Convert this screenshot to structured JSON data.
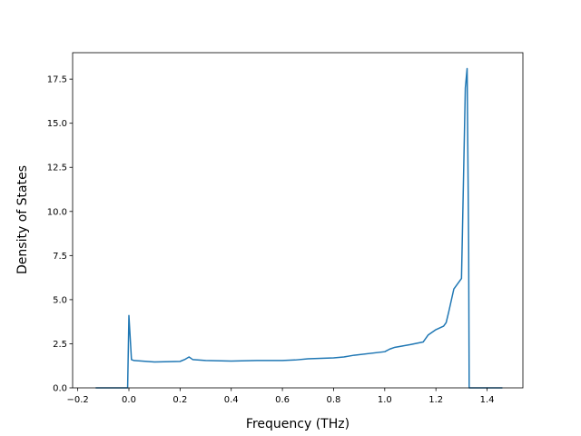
{
  "chart_data": {
    "type": "line",
    "title": "",
    "xlabel": "Frequency (THz)",
    "ylabel": "Density of States",
    "xlim": [
      -0.22,
      1.54
    ],
    "ylim": [
      0.0,
      19.0
    ],
    "xticks": [
      -0.2,
      0.0,
      0.2,
      0.4,
      0.6,
      0.8,
      1.0,
      1.2,
      1.4
    ],
    "xtick_labels": [
      "−0.2",
      "0.0",
      "0.2",
      "0.4",
      "0.6",
      "0.8",
      "1.0",
      "1.2",
      "1.4"
    ],
    "yticks": [
      0.0,
      2.5,
      5.0,
      7.5,
      10.0,
      12.5,
      15.0,
      17.5
    ],
    "ytick_labels": [
      "0.0",
      "2.5",
      "5.0",
      "7.5",
      "10.0",
      "12.5",
      "15.0",
      "17.5"
    ],
    "grid": false,
    "legend": "none",
    "line_color": "#1f77b4",
    "series": [
      {
        "x": [
          -0.13,
          -0.005,
          0.0,
          0.01,
          0.02,
          0.1,
          0.2,
          0.22,
          0.235,
          0.25,
          0.3,
          0.4,
          0.5,
          0.6,
          0.65,
          0.7,
          0.8,
          0.84,
          0.88,
          1.0,
          1.02,
          1.04,
          1.1,
          1.15,
          1.17,
          1.2,
          1.23,
          1.24,
          1.25,
          1.27,
          1.29,
          1.3,
          1.315,
          1.322,
          1.328,
          1.33,
          1.4,
          1.46
        ],
        "y": [
          0.0,
          0.0,
          4.1,
          1.6,
          1.55,
          1.47,
          1.5,
          1.62,
          1.75,
          1.6,
          1.55,
          1.52,
          1.55,
          1.55,
          1.58,
          1.65,
          1.7,
          1.75,
          1.85,
          2.05,
          2.2,
          2.3,
          2.45,
          2.6,
          3.0,
          3.3,
          3.5,
          3.7,
          4.3,
          5.6,
          6.0,
          6.2,
          17.0,
          18.1,
          8.0,
          0.0,
          0.0,
          0.0
        ]
      }
    ]
  }
}
